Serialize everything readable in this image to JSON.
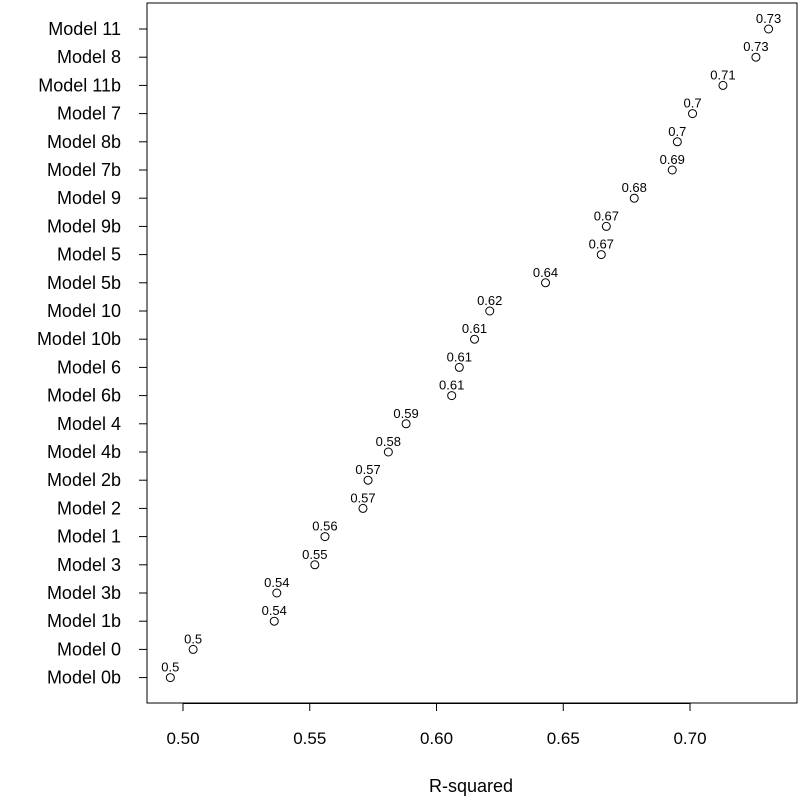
{
  "chart_data": {
    "type": "scatter",
    "xlabel": "R-squared",
    "ylabel": "",
    "title": "",
    "xlim": [
      0.485,
      0.74
    ],
    "x_ticks": [
      0.5,
      0.55,
      0.6,
      0.65,
      0.7
    ],
    "x_tick_labels": [
      "0.50",
      "0.55",
      "0.60",
      "0.65",
      "0.70"
    ],
    "grid": false,
    "points": [
      {
        "label": "Model 11",
        "x": 0.731,
        "value_label": "0.73"
      },
      {
        "label": "Model 8",
        "x": 0.726,
        "value_label": "0.73"
      },
      {
        "label": "Model 11b",
        "x": 0.713,
        "value_label": "0.71"
      },
      {
        "label": "Model 7",
        "x": 0.701,
        "value_label": "0.7"
      },
      {
        "label": "Model 8b",
        "x": 0.695,
        "value_label": "0.7"
      },
      {
        "label": "Model 7b",
        "x": 0.693,
        "value_label": "0.69"
      },
      {
        "label": "Model 9",
        "x": 0.678,
        "value_label": "0.68"
      },
      {
        "label": "Model 9b",
        "x": 0.667,
        "value_label": "0.67"
      },
      {
        "label": "Model 5",
        "x": 0.665,
        "value_label": "0.67"
      },
      {
        "label": "Model 5b",
        "x": 0.643,
        "value_label": "0.64"
      },
      {
        "label": "Model 10",
        "x": 0.621,
        "value_label": "0.62"
      },
      {
        "label": "Model 10b",
        "x": 0.615,
        "value_label": "0.61"
      },
      {
        "label": "Model 6",
        "x": 0.609,
        "value_label": "0.61"
      },
      {
        "label": "Model 6b",
        "x": 0.606,
        "value_label": "0.61"
      },
      {
        "label": "Model 4",
        "x": 0.588,
        "value_label": "0.59"
      },
      {
        "label": "Model 4b",
        "x": 0.581,
        "value_label": "0.58"
      },
      {
        "label": "Model 2b",
        "x": 0.573,
        "value_label": "0.57"
      },
      {
        "label": "Model 2",
        "x": 0.571,
        "value_label": "0.57"
      },
      {
        "label": "Model 1",
        "x": 0.556,
        "value_label": "0.56"
      },
      {
        "label": "Model 3",
        "x": 0.552,
        "value_label": "0.55"
      },
      {
        "label": "Model 3b",
        "x": 0.537,
        "value_label": "0.54"
      },
      {
        "label": "Model 1b",
        "x": 0.536,
        "value_label": "0.54"
      },
      {
        "label": "Model 0",
        "x": 0.504,
        "value_label": "0.5"
      },
      {
        "label": "Model 0b",
        "x": 0.495,
        "value_label": "0.5"
      }
    ],
    "marker": "open-circle",
    "marker_color": "#000000"
  }
}
